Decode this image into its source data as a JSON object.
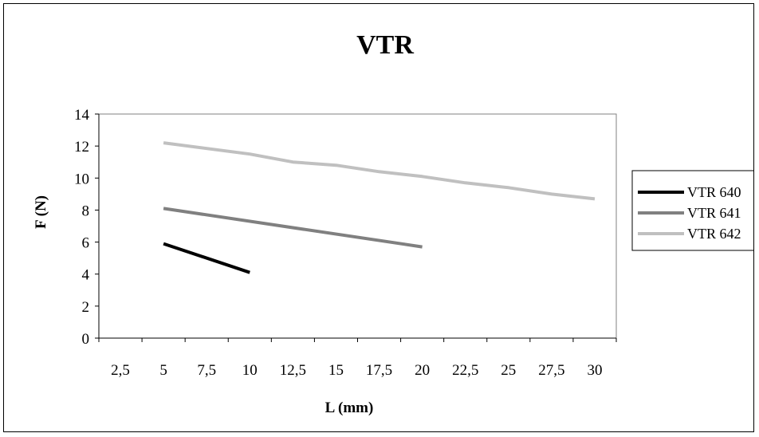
{
  "chart_data": {
    "type": "line",
    "title": "VTR",
    "xlabel": "L (mm)",
    "ylabel": "F (N)",
    "categories": [
      "2,5",
      "5",
      "7,5",
      "10",
      "12,5",
      "15",
      "17,5",
      "20",
      "22,5",
      "25",
      "27,5",
      "30"
    ],
    "x_values": [
      2.5,
      5,
      7.5,
      10,
      12.5,
      15,
      17.5,
      20,
      22.5,
      25,
      27.5,
      30
    ],
    "yticks": [
      "0",
      "2",
      "4",
      "6",
      "8",
      "10",
      "12",
      "14"
    ],
    "ylim": [
      0,
      14
    ],
    "grid": false,
    "legend_position": "right",
    "series": [
      {
        "name": "VTR 640",
        "color": "#000000",
        "points": [
          [
            5,
            5.9
          ],
          [
            10,
            4.1
          ]
        ]
      },
      {
        "name": "VTR 641",
        "color": "#808080",
        "points": [
          [
            5,
            8.1
          ],
          [
            20,
            5.7
          ]
        ]
      },
      {
        "name": "VTR 642",
        "color": "#c0c0c0",
        "points": [
          [
            5,
            12.2
          ],
          [
            10,
            11.5
          ],
          [
            12.5,
            11.0
          ],
          [
            15,
            10.8
          ],
          [
            17.5,
            10.4
          ],
          [
            20,
            10.1
          ],
          [
            22.5,
            9.7
          ],
          [
            25,
            9.4
          ],
          [
            27.5,
            9.0
          ],
          [
            30,
            8.7
          ]
        ]
      }
    ]
  }
}
